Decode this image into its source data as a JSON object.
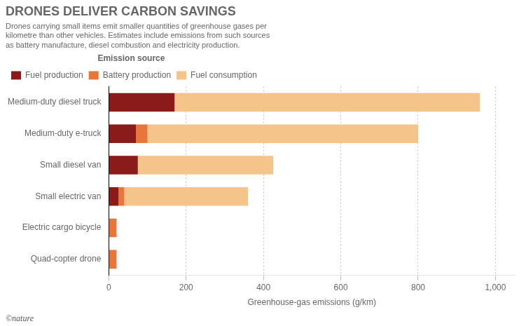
{
  "chart_data": {
    "type": "bar",
    "orientation": "horizontal",
    "stacked": true,
    "title": "DRONES DELIVER CARBON SAVINGS",
    "subtitle": [
      "Drones carrying small items emit smaller quantities of greenhouse gases per",
      "kilometre than other vehicles. Estimates include emissions from such sources",
      "as battery manufacture, diesel combustion and electricity production."
    ],
    "categories": [
      "Medium-duty diesel truck",
      "Medium-duty e-truck",
      "Small diesel van",
      "Small electric van",
      "Electric cargo bicycle",
      "Quad-copter drone"
    ],
    "series": [
      {
        "name": "Fuel production",
        "color": "#8B1A1A",
        "values": [
          170,
          70,
          75,
          25,
          0,
          0
        ]
      },
      {
        "name": "Battery production",
        "color": "#E8763A",
        "values": [
          0,
          30,
          0,
          15,
          20,
          20
        ]
      },
      {
        "name": "Fuel consumption",
        "color": "#F5C48A",
        "values": [
          790,
          700,
          350,
          320,
          0,
          0
        ]
      }
    ],
    "xlabel": "Greenhouse-gas emissions (g/km)",
    "xlim": [
      0,
      1050
    ],
    "xticks": [
      0,
      200,
      400,
      600,
      800,
      {
        "value": 1000,
        "label": "1,000"
      }
    ],
    "grid": true,
    "legend": "top",
    "legend_title": "Emission source",
    "annotations": [
      "©nature"
    ]
  }
}
